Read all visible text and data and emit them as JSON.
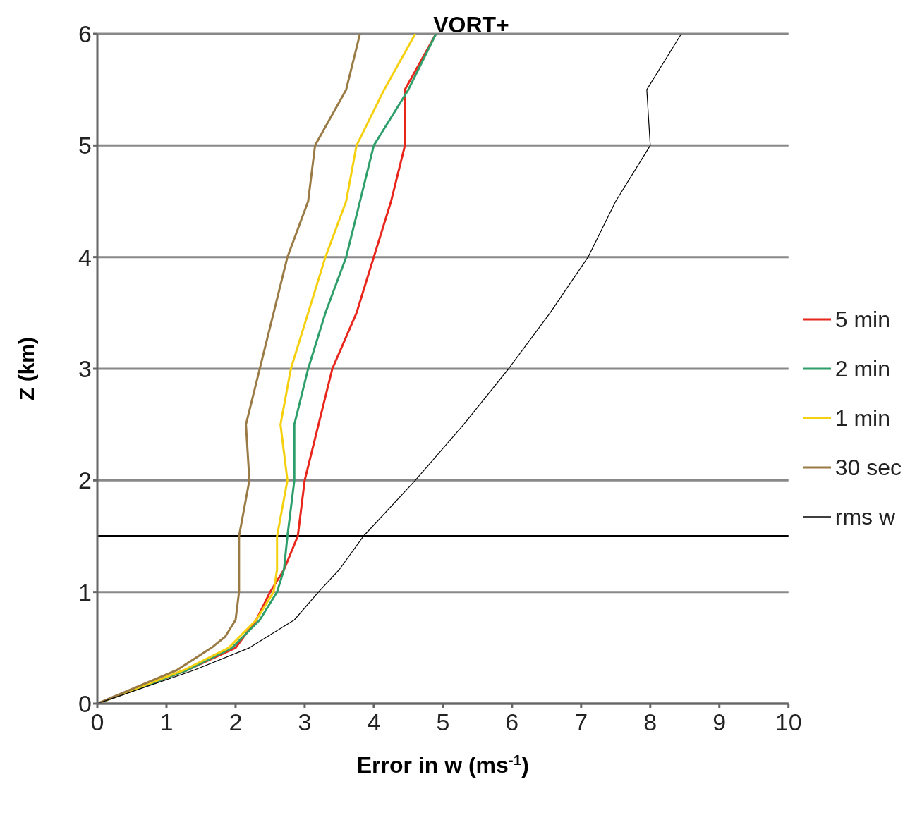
{
  "chart_data": {
    "type": "line",
    "title": "VORT+",
    "xlabel": "Error in w (ms$^{-1}$)",
    "ylabel": "Z (km)",
    "xlim": [
      0,
      10
    ],
    "xticks": [
      0,
      1,
      2,
      3,
      4,
      5,
      6,
      7,
      8,
      9,
      10
    ],
    "ylim": [
      0,
      6
    ],
    "yticks": [
      0,
      1,
      2,
      3,
      4,
      5,
      6
    ],
    "grid": "y",
    "legend": "right",
    "marker": "none",
    "line_style": "solid",
    "ref_lines": [
      {
        "axis": "y",
        "value": 1.5,
        "color": "#000000"
      }
    ],
    "series": [
      {
        "name": "5 min",
        "color": "#e8261c",
        "x": [
          0,
          1.3,
          2.0,
          2.3,
          2.5,
          2.7,
          2.9,
          3.0,
          3.2,
          3.4,
          3.75,
          4.0,
          4.25,
          4.45,
          4.45,
          4.9
        ],
        "values": [
          0,
          0.3,
          0.5,
          0.75,
          1,
          1.2,
          1.5,
          2,
          2.5,
          3,
          3.5,
          4,
          4.5,
          5,
          5.5,
          6
        ]
      },
      {
        "name": "2 min",
        "color": "#2e9e6a",
        "x": [
          0,
          1.3,
          1.95,
          2.35,
          2.6,
          2.7,
          2.75,
          2.85,
          2.85,
          3.05,
          3.3,
          3.6,
          3.8,
          4.0,
          4.5,
          4.9
        ],
        "values": [
          0,
          0.3,
          0.5,
          0.75,
          1,
          1.2,
          1.5,
          2,
          2.5,
          3,
          3.5,
          4,
          4.5,
          5,
          5.5,
          6
        ]
      },
      {
        "name": "1 min",
        "color": "#f5d00f",
        "x": [
          0,
          1.25,
          1.9,
          2.3,
          2.55,
          2.6,
          2.6,
          2.75,
          2.65,
          2.8,
          3.05,
          3.3,
          3.6,
          3.75,
          4.15,
          4.6
        ],
        "values": [
          0,
          0.3,
          0.5,
          0.75,
          1,
          1.2,
          1.5,
          2,
          2.5,
          3,
          3.5,
          4,
          4.5,
          5,
          5.5,
          6
        ]
      },
      {
        "name": "30 sec",
        "color": "#9a7b45",
        "x": [
          0,
          1.15,
          1.65,
          1.85,
          2.0,
          2.05,
          2.05,
          2.05,
          2.2,
          2.15,
          2.35,
          2.55,
          2.75,
          3.05,
          3.15,
          3.6,
          3.8
        ],
        "values": [
          0,
          0.3,
          0.5,
          0.6,
          0.75,
          1,
          1.2,
          1.5,
          2,
          2.5,
          3,
          3.5,
          4,
          4.5,
          5,
          5.5,
          6
        ]
      },
      {
        "name": "rms w",
        "color": "#000000",
        "x": [
          0,
          1.4,
          2.2,
          2.85,
          3.2,
          3.5,
          3.85,
          4.6,
          5.3,
          5.95,
          6.55,
          7.1,
          7.5,
          8.0,
          7.95,
          8.45
        ],
        "values": [
          0,
          0.3,
          0.5,
          0.75,
          1,
          1.2,
          1.5,
          2,
          2.5,
          3,
          3.5,
          4,
          4.5,
          5,
          5.5,
          6
        ]
      }
    ]
  }
}
